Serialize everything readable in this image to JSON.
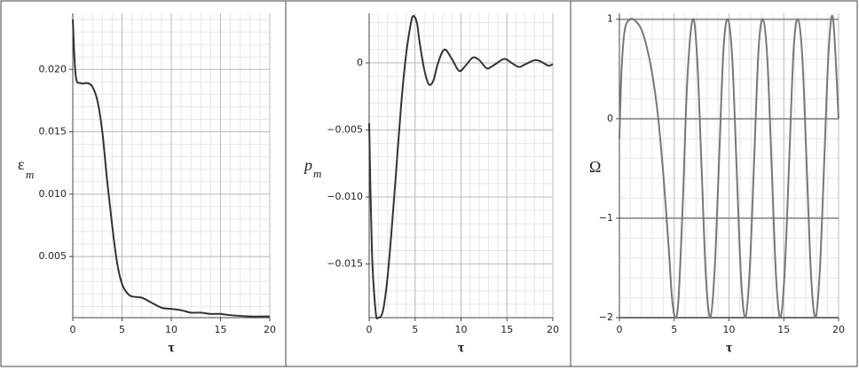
{
  "chart_data": [
    {
      "type": "line",
      "ylabel": "ε",
      "ylabel_sub": "m",
      "xlabel": "τ",
      "grid": true,
      "color": "#333333",
      "xlim": [
        0,
        20
      ],
      "xticks": [
        0,
        5,
        10,
        15,
        20
      ],
      "ylim": [
        0.0001,
        0.0245
      ],
      "yticks": [
        {
          "value": 0.005,
          "label": "0.005"
        },
        {
          "value": 0.01,
          "label": "0.010"
        },
        {
          "value": 0.015,
          "label": "0.015"
        },
        {
          "value": 0.02,
          "label": "0.020"
        }
      ],
      "x": [
        0,
        0.3,
        0.8,
        1.5,
        2,
        2.5,
        3,
        3.5,
        4,
        4.5,
        5,
        5.5,
        6,
        7,
        8,
        9,
        10,
        11,
        12,
        13,
        14,
        15,
        16,
        18,
        20
      ],
      "values": [
        0.024,
        0.0195,
        0.0189,
        0.0189,
        0.0186,
        0.0175,
        0.015,
        0.011,
        0.0075,
        0.0045,
        0.0028,
        0.0021,
        0.0018,
        0.0017,
        0.0013,
        0.0009,
        0.0008,
        0.0007,
        0.0005,
        0.0005,
        0.0004,
        0.0004,
        0.0003,
        0.0002,
        0.0002
      ]
    },
    {
      "type": "line",
      "ylabel": "p",
      "ylabel_sub": "m",
      "xlabel": "τ",
      "grid": true,
      "color": "#333333",
      "xlim": [
        0,
        20
      ],
      "xticks": [
        0,
        5,
        10,
        15,
        20
      ],
      "ylim": [
        -0.019,
        0.0037
      ],
      "yticks": [
        {
          "value": -0.015,
          "label": "−0.015"
        },
        {
          "value": -0.01,
          "label": "−0.010"
        },
        {
          "value": -0.005,
          "label": "−0.005"
        },
        0
      ],
      "x": [
        0,
        0.3,
        0.7,
        1,
        1.5,
        2,
        2.5,
        3,
        3.5,
        4,
        4.5,
        4.8,
        5.2,
        5.5,
        6,
        6.5,
        7,
        7.5,
        8.2,
        9,
        9.8,
        10.5,
        11.3,
        12,
        12.8,
        13.5,
        14.7,
        15.5,
        16.3,
        17,
        18,
        18.7,
        19.5,
        20
      ],
      "values": [
        -0.0045,
        -0.014,
        -0.0185,
        -0.019,
        -0.0185,
        -0.016,
        -0.012,
        -0.0075,
        -0.003,
        0.0005,
        0.0028,
        0.0035,
        0.003,
        0.0015,
        -0.0005,
        -0.0016,
        -0.0013,
        0,
        0.001,
        0.0003,
        -0.0006,
        -0.0002,
        0.0004,
        0.0002,
        -0.0004,
        -0.0002,
        0.0003,
        0,
        -0.0003,
        -0.0001,
        0.0002,
        0.0001,
        -0.0002,
        -0.0001
      ]
    },
    {
      "type": "line",
      "ylabel": "Ω",
      "xlabel": "τ",
      "grid": true,
      "color": "#777777",
      "xlim": [
        0,
        20
      ],
      "xticks": [
        0,
        5,
        10,
        15,
        20
      ],
      "ylim": [
        -2,
        1.06
      ],
      "yticks": [
        {
          "value": -2,
          "label": "−2"
        },
        {
          "value": -1,
          "label": "−1"
        },
        0,
        1
      ],
      "x": [
        0,
        0.2,
        0.5,
        1,
        1.5,
        2,
        2.5,
        3,
        3.5,
        4,
        4.5,
        4.8,
        5.1,
        5.4,
        5.8,
        6.2,
        6.7,
        7.1,
        7.5,
        7.9,
        8.3,
        8.7,
        9.1,
        9.5,
        9.9,
        10.3,
        10.7,
        11.1,
        11.5,
        11.9,
        12.3,
        12.7,
        13.1,
        13.5,
        13.9,
        14.3,
        14.7,
        15.1,
        15.5,
        15.9,
        16.3,
        16.7,
        17.1,
        17.5,
        17.9,
        18.3,
        18.7,
        19.1,
        19.5,
        20
      ],
      "values": [
        -0.2,
        0.5,
        0.9,
        1.0,
        0.98,
        0.9,
        0.72,
        0.45,
        0.05,
        -0.55,
        -1.3,
        -1.8,
        -2.0,
        -1.8,
        -0.8,
        0.4,
        1.0,
        0.6,
        -0.5,
        -1.6,
        -2.0,
        -1.5,
        -0.4,
        0.7,
        1.0,
        0.6,
        -0.5,
        -1.6,
        -2.0,
        -1.5,
        -0.4,
        0.7,
        1.0,
        0.6,
        -0.5,
        -1.6,
        -2.0,
        -1.5,
        -0.4,
        0.7,
        1.0,
        0.6,
        -0.5,
        -1.6,
        -2.0,
        -1.5,
        -0.4,
        0.7,
        1.0,
        0.0
      ]
    }
  ]
}
